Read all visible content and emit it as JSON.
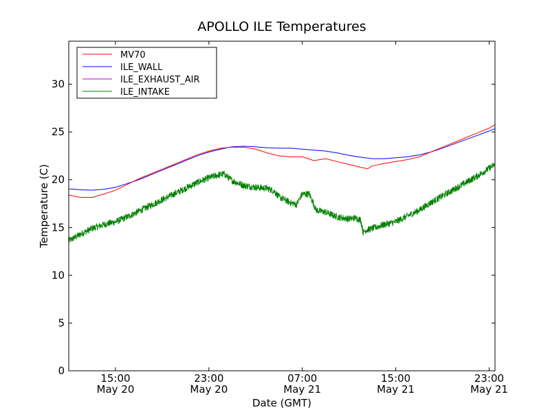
{
  "chart_data": {
    "type": "line",
    "title": "APOLLO ILE Temperatures",
    "xlabel": "Date (GMT)",
    "ylabel": "Temperature (C)",
    "x_unit": "hours",
    "xlim": [
      11.0,
      47.5
    ],
    "ylim": [
      0,
      34.5
    ],
    "y_ticks": [
      0,
      5,
      10,
      15,
      20,
      25,
      30
    ],
    "x_ticks": [
      {
        "x": 15,
        "time": "15:00",
        "date": "May 20"
      },
      {
        "x": 23,
        "time": "23:00",
        "date": "May 20"
      },
      {
        "x": 31,
        "time": "07:00",
        "date": "May 21"
      },
      {
        "x": 39,
        "time": "15:00",
        "date": "May 21"
      },
      {
        "x": 47,
        "time": "23:00",
        "date": "May 21"
      }
    ],
    "grid": false,
    "legend_position": "upper-left",
    "series": [
      {
        "name": "MV70",
        "color": "#ff0000",
        "x": [
          11.0,
          12.0,
          13.0,
          14.0,
          15.0,
          16.0,
          17.0,
          18.0,
          19.0,
          20.0,
          21.0,
          22.0,
          23.0,
          24.0,
          25.0,
          26.0,
          27.0,
          28.0,
          29.0,
          30.0,
          31.0,
          32.0,
          33.0,
          34.0,
          35.0,
          36.0,
          36.6,
          37.0,
          38.0,
          39.0,
          40.0,
          41.0,
          42.0,
          43.0,
          44.0,
          45.0,
          46.0,
          47.0,
          47.5
        ],
        "y": [
          18.4,
          18.15,
          18.15,
          18.5,
          18.9,
          19.5,
          20.1,
          20.6,
          21.1,
          21.6,
          22.1,
          22.6,
          23.0,
          23.3,
          23.4,
          23.4,
          23.2,
          22.8,
          22.5,
          22.4,
          22.4,
          22.0,
          22.2,
          21.9,
          21.6,
          21.3,
          21.15,
          21.45,
          21.7,
          21.9,
          22.1,
          22.4,
          22.9,
          23.4,
          23.9,
          24.4,
          24.9,
          25.4,
          25.75
        ]
      },
      {
        "name": "ILE_WALL",
        "color": "#0000ff",
        "x": [
          11.0,
          12.0,
          13.0,
          14.0,
          15.0,
          16.0,
          17.0,
          18.0,
          19.0,
          20.0,
          21.0,
          22.0,
          23.0,
          24.0,
          25.0,
          26.0,
          27.0,
          28.0,
          29.0,
          30.0,
          31.0,
          32.0,
          33.0,
          34.0,
          35.0,
          36.0,
          37.0,
          38.0,
          39.0,
          40.0,
          41.0,
          42.0,
          43.0,
          44.0,
          45.0,
          46.0,
          47.0,
          47.5
        ],
        "y": [
          19.05,
          18.95,
          18.9,
          19.0,
          19.2,
          19.6,
          20.0,
          20.5,
          21.0,
          21.5,
          22.0,
          22.5,
          22.9,
          23.2,
          23.45,
          23.5,
          23.45,
          23.35,
          23.3,
          23.3,
          23.2,
          23.1,
          23.0,
          22.8,
          22.55,
          22.35,
          22.2,
          22.2,
          22.3,
          22.4,
          22.6,
          22.9,
          23.3,
          23.75,
          24.2,
          24.65,
          25.1,
          25.35
        ]
      },
      {
        "name": "ILE_EXHAUST_AIR",
        "color": "#bf00bf",
        "x": [],
        "y": []
      },
      {
        "name": "ILE_INTAKE",
        "color": "#008000",
        "noise": 0.35,
        "x": [
          11.0,
          12.0,
          13.0,
          14.0,
          15.0,
          16.0,
          17.0,
          18.0,
          19.0,
          20.0,
          21.0,
          22.0,
          23.0,
          23.8,
          24.3,
          25.0,
          26.0,
          27.0,
          28.0,
          28.6,
          29.0,
          30.0,
          30.5,
          31.0,
          31.6,
          32.2,
          32.6,
          33.0,
          34.0,
          35.0,
          35.5,
          36.0,
          36.2,
          36.4,
          37.0,
          38.0,
          39.0,
          40.0,
          41.0,
          42.0,
          43.0,
          44.0,
          45.0,
          46.0,
          47.0,
          47.5
        ],
        "y": [
          13.6,
          14.3,
          14.9,
          15.3,
          15.6,
          16.1,
          16.7,
          17.3,
          17.9,
          18.5,
          19.1,
          19.7,
          20.2,
          20.5,
          20.6,
          19.9,
          19.4,
          19.2,
          19.1,
          18.8,
          18.2,
          17.6,
          17.4,
          18.5,
          18.5,
          16.8,
          16.7,
          16.6,
          16.1,
          15.9,
          16.0,
          15.8,
          14.5,
          14.7,
          14.9,
          15.3,
          15.6,
          16.2,
          16.8,
          17.6,
          18.3,
          19.0,
          19.7,
          20.4,
          21.2,
          21.6
        ]
      }
    ]
  }
}
